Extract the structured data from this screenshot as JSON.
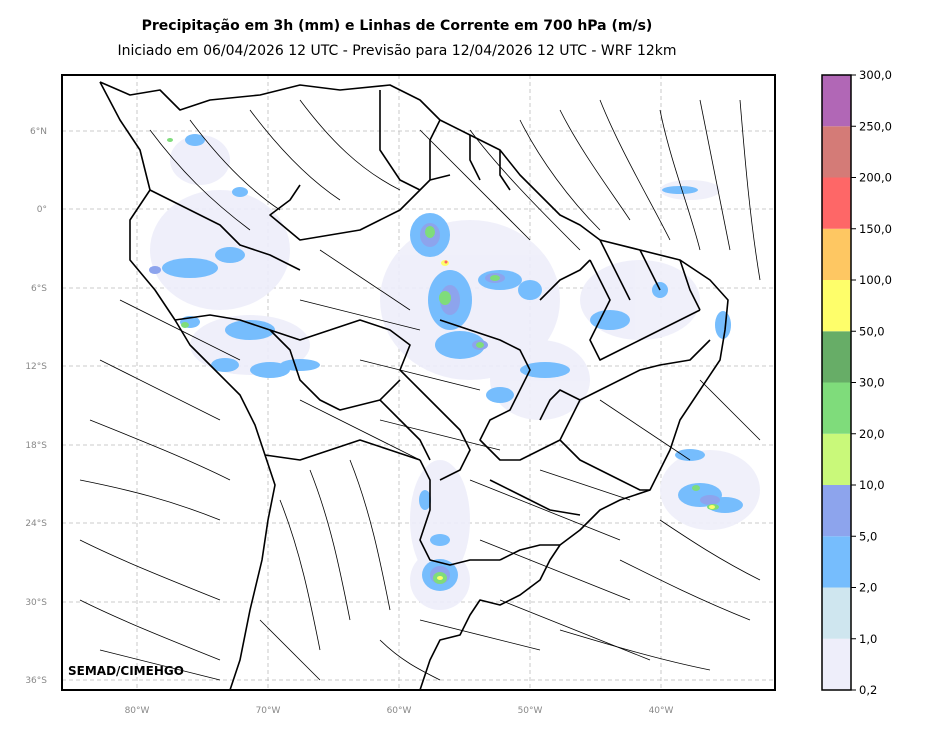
{
  "header": {
    "title": "Precipitação em 3h (mm) e Linhas de Corrente em 700 hPa (m/s)",
    "subtitle": "Iniciado em 06/04/2026 12 UTC - Previsão para 12/04/2026 12 UTC - WRF 12km"
  },
  "map": {
    "lon_range": [
      -86,
      -31
    ],
    "lat_range": [
      -37,
      10
    ],
    "lon_ticks": [
      "80°W",
      "70°W",
      "60°W",
      "50°W",
      "40°W"
    ],
    "lat_ticks": [
      "6°N",
      "0°",
      "6°S",
      "12°S",
      "18°S",
      "24°S",
      "30°S",
      "36°S"
    ],
    "grid": true,
    "credit": "SEMAD/CIMEHGO"
  },
  "colorbar": {
    "labels": [
      "0,2",
      "1,0",
      "2,0",
      "5,0",
      "10,0",
      "20,0",
      "30,0",
      "50,0",
      "100,0",
      "150,0",
      "200,0",
      "250,0",
      "300,0"
    ],
    "colors": [
      "#eeeefa",
      "#cfe6ef",
      "#76bdfd",
      "#8da4ed",
      "#c9f97a",
      "#7fdc7b",
      "#67ad67",
      "#fefe6a",
      "#fec762",
      "#fe6767",
      "#d47b77",
      "#b167b6"
    ]
  }
}
